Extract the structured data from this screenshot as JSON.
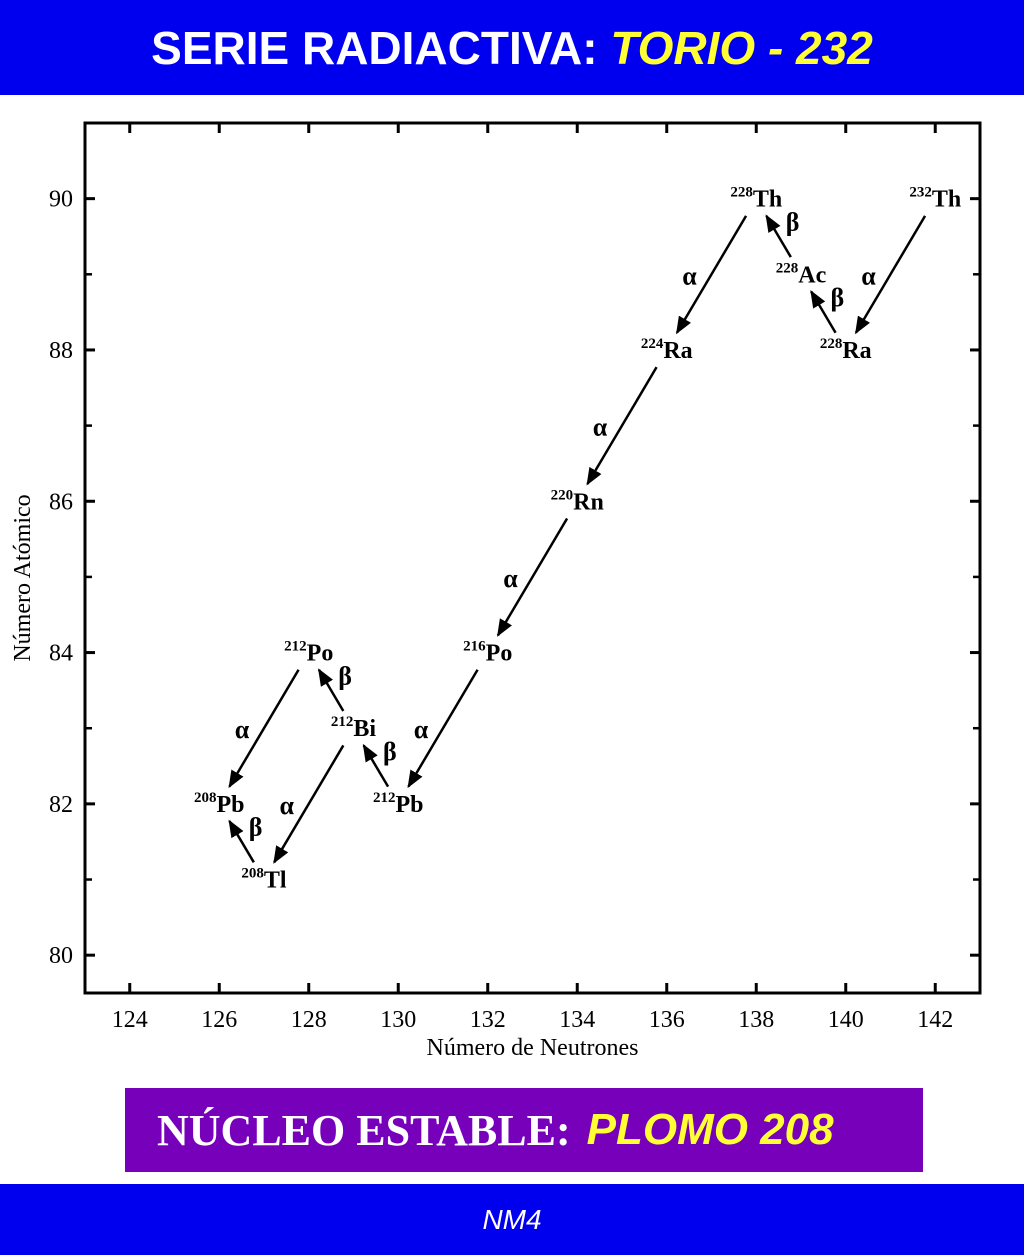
{
  "header": {
    "title_prefix": "SERIE RADIACTIVA:",
    "title_highlight": "TORIO - 232"
  },
  "banner": {
    "label": "NÚCLEO ESTABLE:",
    "value": "PLOMO 208"
  },
  "footer": {
    "text": "NM4"
  },
  "colors": {
    "header_bg": "#0000ee",
    "banner_bg": "#7700bb",
    "highlight": "#ffff33"
  },
  "chart_data": {
    "type": "scatter",
    "xlabel": "Número de Neutrones",
    "ylabel": "Número Atómico",
    "xlim": [
      123,
      143
    ],
    "ylim": [
      79.5,
      91
    ],
    "xticks": [
      124,
      126,
      128,
      130,
      132,
      134,
      136,
      138,
      140,
      142
    ],
    "yticks": [
      80,
      82,
      84,
      86,
      88,
      90
    ],
    "nuclides": [
      {
        "id": "th232",
        "mass": "232",
        "symbol": "Th",
        "n": 142,
        "z": 90
      },
      {
        "id": "ra228",
        "mass": "228",
        "symbol": "Ra",
        "n": 140,
        "z": 88
      },
      {
        "id": "ac228",
        "mass": "228",
        "symbol": "Ac",
        "n": 139,
        "z": 89
      },
      {
        "id": "th228",
        "mass": "228",
        "symbol": "Th",
        "n": 138,
        "z": 90
      },
      {
        "id": "ra224",
        "mass": "224",
        "symbol": "Ra",
        "n": 136,
        "z": 88
      },
      {
        "id": "rn220",
        "mass": "220",
        "symbol": "Rn",
        "n": 134,
        "z": 86
      },
      {
        "id": "po216",
        "mass": "216",
        "symbol": "Po",
        "n": 132,
        "z": 84
      },
      {
        "id": "pb212",
        "mass": "212",
        "symbol": "Pb",
        "n": 130,
        "z": 82
      },
      {
        "id": "bi212",
        "mass": "212",
        "symbol": "Bi",
        "n": 129,
        "z": 83
      },
      {
        "id": "po212",
        "mass": "212",
        "symbol": "Po",
        "n": 128,
        "z": 84
      },
      {
        "id": "tl208",
        "mass": "208",
        "symbol": "Tl",
        "n": 127,
        "z": 81
      },
      {
        "id": "pb208",
        "mass": "208",
        "symbol": "Pb",
        "n": 126,
        "z": 82
      }
    ],
    "decays": [
      {
        "from": "th232",
        "to": "ra228",
        "mode": "α"
      },
      {
        "from": "ra228",
        "to": "ac228",
        "mode": "β"
      },
      {
        "from": "ac228",
        "to": "th228",
        "mode": "β"
      },
      {
        "from": "th228",
        "to": "ra224",
        "mode": "α"
      },
      {
        "from": "ra224",
        "to": "rn220",
        "mode": "α"
      },
      {
        "from": "rn220",
        "to": "po216",
        "mode": "α"
      },
      {
        "from": "po216",
        "to": "pb212",
        "mode": "α"
      },
      {
        "from": "pb212",
        "to": "bi212",
        "mode": "β"
      },
      {
        "from": "bi212",
        "to": "po212",
        "mode": "β"
      },
      {
        "from": "bi212",
        "to": "tl208",
        "mode": "α"
      },
      {
        "from": "po212",
        "to": "pb208",
        "mode": "α"
      },
      {
        "from": "tl208",
        "to": "pb208",
        "mode": "β"
      }
    ]
  }
}
